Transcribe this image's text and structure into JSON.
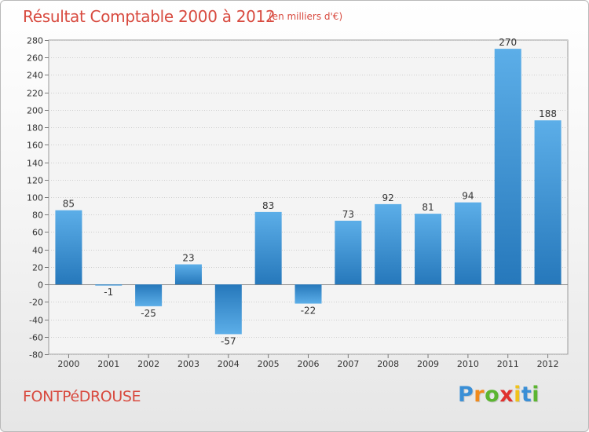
{
  "title": "Résultat Comptable 2000 à 2012",
  "subtitle": "(en milliers d'€)",
  "location": "FONTPéDROUSE",
  "brand": {
    "letters": [
      "P",
      "r",
      "o",
      "x",
      "i",
      "t",
      "i"
    ],
    "colors": [
      "#3a8fd6",
      "#f08a1c",
      "#5cb531",
      "#e0322e",
      "#f0c21b",
      "#3a8fd6",
      "#5cb531"
    ]
  },
  "colors": {
    "bar_top": "#5caee8",
    "bar_bottom": "#2678bb",
    "title": "#d84a3f"
  },
  "chart_data": {
    "type": "bar",
    "categories": [
      "2000",
      "2001",
      "2002",
      "2003",
      "2004",
      "2005",
      "2006",
      "2007",
      "2008",
      "2009",
      "2010",
      "2011",
      "2012"
    ],
    "values": [
      85,
      -1,
      -25,
      23,
      -57,
      83,
      -22,
      73,
      92,
      81,
      94,
      270,
      188
    ],
    "data_labels": [
      "85",
      "-1",
      "-25",
      "23",
      "-57",
      "83",
      "-22",
      "73",
      "92",
      "81",
      "94",
      "270",
      "188"
    ],
    "ylim": [
      -80,
      280
    ],
    "yticks": [
      -80,
      -60,
      -40,
      -20,
      0,
      20,
      40,
      60,
      80,
      100,
      120,
      140,
      160,
      180,
      200,
      220,
      240,
      260,
      280
    ],
    "grid": true,
    "legend": "none"
  }
}
